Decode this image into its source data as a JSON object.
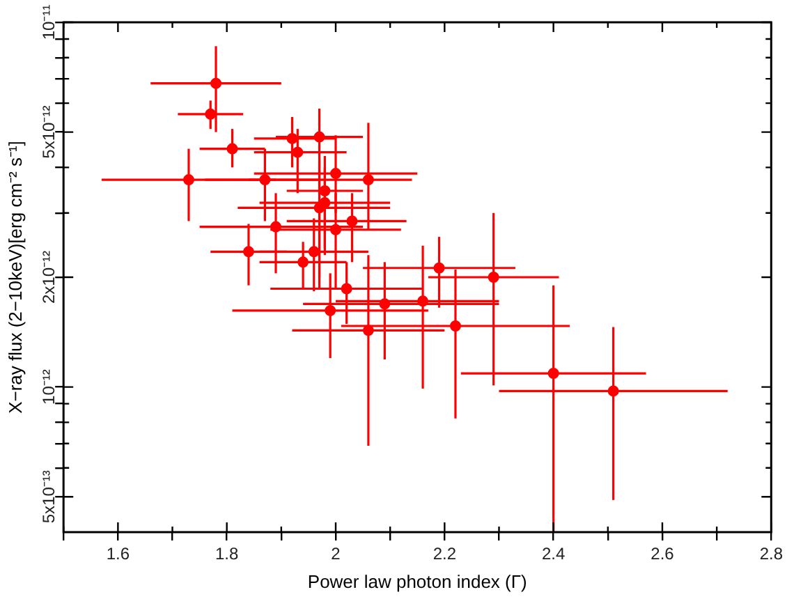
{
  "chart_data": {
    "type": "scatter",
    "xlabel": "Power law photon index (Γ)",
    "ylabel": "X−ray flux (2−10keV)[erg cm⁻² s⁻¹]",
    "log": true,
    "grid": false,
    "legend": false,
    "marker": "circle",
    "xlim": [
      1.5,
      2.8
    ],
    "xticks": [
      {
        "value": 1.5,
        "label": null
      },
      1.6,
      {
        "value": 1.7,
        "label": null
      },
      1.8,
      {
        "value": 1.9,
        "label": null
      },
      2,
      {
        "value": 2.1,
        "label": null
      },
      2.2,
      {
        "value": 2.3,
        "label": null
      },
      2.4,
      {
        "value": 2.5,
        "label": null
      },
      2.6,
      {
        "value": 2.7,
        "label": null
      },
      2.8
    ],
    "ylim": [
      4e-13,
      1e-11
    ],
    "yticks": [
      {
        "value": 5e-13,
        "label": "5x10⁻¹³"
      },
      {
        "value": 6e-13,
        "label": null
      },
      {
        "value": 7e-13,
        "label": null
      },
      {
        "value": 8e-13,
        "label": null
      },
      {
        "value": 9e-13,
        "label": null
      },
      {
        "value": 1e-12,
        "label": "10⁻¹²"
      },
      {
        "value": 2e-12,
        "label": "2x10⁻¹²"
      },
      {
        "value": 3e-12,
        "label": null
      },
      {
        "value": 4e-12,
        "label": null
      },
      {
        "value": 5e-12,
        "label": "5x10⁻¹²"
      },
      {
        "value": 6e-12,
        "label": null
      },
      {
        "value": 7e-12,
        "label": null
      },
      {
        "value": 8e-12,
        "label": null
      },
      {
        "value": 9e-12,
        "label": null
      },
      {
        "value": 1e-11,
        "label": "10⁻¹¹"
      }
    ],
    "series": [
      {
        "color": "#ff0000",
        "x": [
          1.78,
          1.77,
          1.81,
          1.73,
          1.92,
          1.97,
          1.93,
          1.87,
          2.0,
          2.06,
          1.98,
          1.98,
          1.97,
          2.03,
          1.89,
          2.0,
          1.84,
          1.96,
          1.94,
          2.02,
          1.99,
          2.06,
          2.09,
          2.16,
          2.19,
          2.22,
          2.29,
          2.4,
          2.51
        ],
        "values": [
          6.8e-12,
          5.6e-12,
          4.5e-12,
          3.7e-12,
          4.8e-12,
          4.85e-12,
          4.4e-12,
          3.7e-12,
          3.85e-12,
          3.7e-12,
          3.45e-12,
          3.2e-12,
          3.1e-12,
          2.85e-12,
          2.75e-12,
          2.7e-12,
          2.35e-12,
          2.35e-12,
          2.2e-12,
          1.86e-12,
          1.62e-12,
          1.43e-12,
          1.69e-12,
          1.72e-12,
          2.12e-12,
          1.47e-12,
          2e-12,
          1.09e-12,
          9.75e-13
        ],
        "errors": [
          [
            5e-12,
            8.6e-12
          ],
          [
            5.1e-12,
            6.1e-12
          ],
          [
            4e-12,
            5.1e-12
          ],
          [
            2.85e-12,
            4.5e-12
          ],
          [
            4e-12,
            5.5e-12
          ],
          [
            1.85e-12,
            5.8e-12
          ],
          [
            3.4e-12,
            5.1e-12
          ],
          [
            2.85e-12,
            4.5e-12
          ],
          [
            3e-12,
            4.9e-12
          ],
          [
            2.7e-12,
            5.3e-12
          ],
          [
            2.4e-12,
            4.3e-12
          ],
          [
            2.3e-12,
            4e-12
          ],
          [
            2e-12,
            4.2e-12
          ],
          [
            2.2e-12,
            3.4e-12
          ],
          [
            2.05e-12,
            3.4e-12
          ],
          [
            1.85e-12,
            3.4e-12
          ],
          [
            1.9e-12,
            2.8e-12
          ],
          [
            1.83e-12,
            2.9e-12
          ],
          [
            1.85e-12,
            2.5e-12
          ],
          [
            1.49e-12,
            2.2e-12
          ],
          [
            1.2e-12,
            2.05e-12
          ],
          [
            6.9e-13,
            2.3e-12
          ],
          [
            1.19e-12,
            2.2e-12
          ],
          [
            9.9e-13,
            2.44e-12
          ],
          [
            1.65e-12,
            2.58e-12
          ],
          [
            8.2e-13,
            2.1e-12
          ],
          [
            1.01e-12,
            3e-12
          ],
          [
            4e-13,
            1.9e-12
          ],
          [
            4.9e-13,
            1.46e-12
          ]
        ],
        "xerrors": [
          [
            1.66,
            1.9
          ],
          [
            1.71,
            1.83
          ],
          [
            1.75,
            1.87
          ],
          [
            1.57,
            1.89
          ],
          [
            1.85,
            2.0
          ],
          [
            1.89,
            2.05
          ],
          [
            1.85,
            2.02
          ],
          [
            1.76,
            1.97
          ],
          [
            1.85,
            2.15
          ],
          [
            1.84,
            2.14
          ],
          [
            1.91,
            2.05
          ],
          [
            1.86,
            2.1
          ],
          [
            1.82,
            2.1
          ],
          [
            1.91,
            2.13
          ],
          [
            1.75,
            2.05
          ],
          [
            1.88,
            2.12
          ],
          [
            1.77,
            1.91
          ],
          [
            1.86,
            2.06
          ],
          [
            1.86,
            2.02
          ],
          [
            1.88,
            2.16
          ],
          [
            1.81,
            2.17
          ],
          [
            1.92,
            2.2
          ],
          [
            1.94,
            2.3
          ],
          [
            2.0,
            2.3
          ],
          [
            2.05,
            2.33
          ],
          [
            2.01,
            2.43
          ],
          [
            2.17,
            2.41
          ],
          [
            2.23,
            2.57
          ],
          [
            2.3,
            2.72
          ]
        ]
      }
    ]
  }
}
